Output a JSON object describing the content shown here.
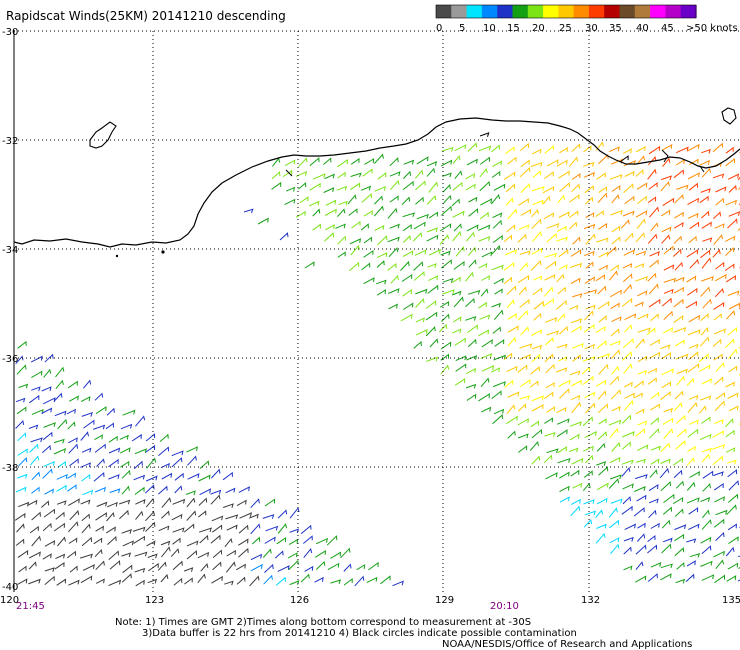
{
  "title": "Rapidscat Winds(25KM) 20141210 descending",
  "legend": {
    "colors": [
      "#4a4a4a",
      "#9a9a9a",
      "#00e5ff",
      "#0088ff",
      "#1e32c8",
      "#14a014",
      "#7be414",
      "#ffff00",
      "#ffc800",
      "#ff8c00",
      "#ff3c00",
      "#b40000",
      "#6b4a2a",
      "#b07a3a",
      "#ff00ff",
      "#b400c8",
      "#6a00c8"
    ],
    "labels": [
      "0",
      "5",
      "10",
      "15",
      "20",
      "25",
      "30",
      "35",
      "40",
      "45",
      ">50 knots"
    ]
  },
  "axes": {
    "lat_labels": [
      "-30",
      "-32",
      "-34",
      "-36",
      "-38",
      "-40"
    ],
    "lon_labels": [
      "120",
      "123",
      "126",
      "129",
      "132",
      "135"
    ]
  },
  "times": {
    "left": "21:45",
    "right": "20:10"
  },
  "notes": {
    "line1": "Note: 1) Times are GMT 2)Times along bottom correspond to measurement at -30S",
    "line2": "3)Data buffer is 22 hrs from 20141210 4) Black circles indicate possible contamination",
    "credit": "NOAA/NESDIS/Office of Research and Applications"
  },
  "palette": {
    "time_color": "#800080",
    "grid_color": "#000000",
    "coast_color": "#000000"
  }
}
